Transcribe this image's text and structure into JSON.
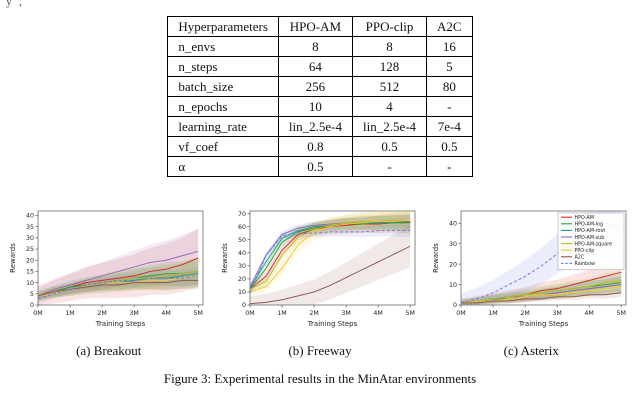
{
  "page": {
    "top_fragment": "y ,",
    "figure_caption": "Figure 3: Experimental results in the MinAtar environments"
  },
  "table": {
    "headers": [
      "Hyperparameters",
      "HPO-AM",
      "PPO-clip",
      "A2C"
    ],
    "rows": [
      [
        "n_envs",
        "8",
        "8",
        "16"
      ],
      [
        "n_steps",
        "64",
        "128",
        "5"
      ],
      [
        "batch_size",
        "256",
        "512",
        "80"
      ],
      [
        "n_epochs",
        "10",
        "4",
        "-"
      ],
      [
        "learning_rate",
        "lin_2.5e-4",
        "lin_2.5e-4",
        "7e-4"
      ],
      [
        "vf_coef",
        "0.8",
        "0.5",
        "0.5"
      ],
      [
        "α",
        "0.5",
        "-",
        "-"
      ]
    ]
  },
  "captions": [
    "(a) Breakout",
    "(b) Freeway",
    "(c) Asterix"
  ],
  "chart_data": [
    {
      "type": "line",
      "title": "Breakout",
      "xlabel": "Training Steps",
      "ylabel": "Rewards",
      "x": [
        0,
        0.5,
        1,
        1.5,
        2,
        2.5,
        3,
        3.5,
        4,
        4.5,
        5
      ],
      "xtick_labels": [
        "0M",
        "1M",
        "2M",
        "3M",
        "4M",
        "5M"
      ],
      "xlim": [
        0,
        5.15
      ],
      "ylim": [
        0,
        42
      ],
      "yticks": [
        0,
        5,
        10,
        15,
        20,
        25,
        30,
        35,
        40
      ],
      "legend": false,
      "series": [
        {
          "name": "HPO-AM",
          "color": "#d62728",
          "dash": false,
          "band": 13,
          "values": [
            4,
            6,
            8,
            10,
            11,
            12,
            13,
            15,
            16,
            18,
            21
          ]
        },
        {
          "name": "HPO-AM-log",
          "color": "#2ca02c",
          "dash": false,
          "band": 6,
          "values": [
            4,
            6,
            8,
            9,
            10,
            11,
            12,
            13,
            14,
            14,
            15
          ]
        },
        {
          "name": "HPO-AM-root",
          "color": "#1b9e77",
          "dash": false,
          "band": 6,
          "values": [
            4,
            6,
            7,
            8,
            9,
            10,
            11,
            12,
            12,
            13,
            14
          ]
        },
        {
          "name": "HPO-AM-sub",
          "color": "#9467bd",
          "dash": false,
          "band": 10,
          "values": [
            4,
            7,
            9,
            11,
            13,
            15,
            17,
            19,
            20,
            22,
            24
          ]
        },
        {
          "name": "HPO-AM-square",
          "color": "#bcbd22",
          "dash": false,
          "band": 6,
          "values": [
            4,
            6,
            7,
            9,
            10,
            11,
            12,
            12,
            13,
            14,
            15
          ]
        },
        {
          "name": "PPO-clip",
          "color": "#f2c832",
          "dash": false,
          "band": 5,
          "values": [
            4,
            5,
            7,
            8,
            9,
            10,
            10,
            11,
            11,
            12,
            13
          ]
        },
        {
          "name": "A2C",
          "color": "#8c564b",
          "dash": false,
          "band": 4,
          "values": [
            4,
            6,
            7,
            8,
            9,
            9,
            10,
            10,
            10,
            11,
            11
          ]
        },
        {
          "name": "Rainbow",
          "color": "#6677ee",
          "dash": true,
          "band": 4,
          "values": [
            3,
            5,
            7,
            9,
            10,
            11,
            11,
            12,
            12,
            12,
            13
          ]
        }
      ]
    },
    {
      "type": "line",
      "title": "Freeway",
      "xlabel": "Training Steps",
      "ylabel": "Rewards",
      "x": [
        0,
        0.5,
        1,
        1.5,
        2,
        2.5,
        3,
        3.5,
        4,
        4.5,
        5
      ],
      "xtick_labels": [
        "0M",
        "1M",
        "2M",
        "3M",
        "4M",
        "5M"
      ],
      "xlim": [
        0,
        5.15
      ],
      "ylim": [
        0,
        72
      ],
      "yticks": [
        0,
        10,
        20,
        30,
        40,
        50,
        60,
        70
      ],
      "legend": false,
      "series": [
        {
          "name": "HPO-AM",
          "color": "#d62728",
          "dash": false,
          "band": 8,
          "values": [
            12,
            22,
            42,
            54,
            58,
            60,
            61,
            62,
            62,
            63,
            63
          ]
        },
        {
          "name": "HPO-AM-log",
          "color": "#2ca02c",
          "dash": false,
          "band": 6,
          "values": [
            12,
            28,
            48,
            56,
            59,
            61,
            62,
            62,
            63,
            63,
            63
          ]
        },
        {
          "name": "HPO-AM-root",
          "color": "#1b9e77",
          "dash": false,
          "band": 6,
          "values": [
            13,
            33,
            51,
            57,
            60,
            61,
            62,
            63,
            63,
            63,
            64
          ]
        },
        {
          "name": "HPO-AM-sub",
          "color": "#9467bd",
          "dash": false,
          "band": 5,
          "values": [
            14,
            38,
            54,
            59,
            61,
            62,
            63,
            63,
            64,
            64,
            64
          ]
        },
        {
          "name": "HPO-AM-square",
          "color": "#bcbd22",
          "dash": false,
          "band": 8,
          "values": [
            12,
            18,
            38,
            52,
            58,
            61,
            63,
            64,
            64,
            65,
            65
          ]
        },
        {
          "name": "PPO-clip",
          "color": "#f2c832",
          "dash": false,
          "band": 10,
          "values": [
            10,
            14,
            28,
            46,
            56,
            60,
            62,
            63,
            64,
            64,
            65
          ]
        },
        {
          "name": "A2C",
          "color": "#8c564b",
          "dash": false,
          "band": 16,
          "values": [
            1,
            2,
            4,
            7,
            10,
            15,
            21,
            27,
            33,
            39,
            45
          ]
        },
        {
          "name": "Rainbow",
          "color": "#6677ee",
          "dash": true,
          "band": 5,
          "values": [
            9,
            38,
            53,
            55,
            55,
            56,
            56,
            56,
            57,
            57,
            57
          ]
        }
      ]
    },
    {
      "type": "line",
      "title": "Asterix",
      "xlabel": "Training Steps",
      "ylabel": "Rewards",
      "x": [
        0,
        0.5,
        1,
        1.5,
        2,
        2.5,
        3,
        3.5,
        4,
        4.5,
        5
      ],
      "xtick_labels": [
        "0M",
        "1M",
        "2M",
        "3M",
        "4M",
        "5M"
      ],
      "xlim": [
        0,
        5.15
      ],
      "ylim": [
        0,
        46
      ],
      "yticks": [
        0,
        10,
        20,
        30,
        40
      ],
      "legend": true,
      "legend_position": "upper right",
      "series": [
        {
          "name": "HPO-AM",
          "color": "#d62728",
          "dash": false,
          "band": 6,
          "values": [
            1,
            2,
            3,
            4,
            5,
            7,
            8,
            10,
            12,
            14,
            16
          ]
        },
        {
          "name": "HPO-AM-log",
          "color": "#2ca02c",
          "dash": false,
          "band": 4,
          "values": [
            1,
            2,
            3,
            4,
            5,
            6,
            7,
            8,
            9,
            10,
            11
          ]
        },
        {
          "name": "HPO-AM-root",
          "color": "#1b9e77",
          "dash": false,
          "band": 4,
          "values": [
            1,
            2,
            3,
            3,
            4,
            5,
            6,
            7,
            8,
            9,
            10
          ]
        },
        {
          "name": "HPO-AM-sub",
          "color": "#9467bd",
          "dash": false,
          "band": 4,
          "values": [
            1,
            2,
            3,
            4,
            4,
            5,
            6,
            7,
            8,
            9,
            10
          ]
        },
        {
          "name": "HPO-AM-square",
          "color": "#bcbd22",
          "dash": false,
          "band": 5,
          "values": [
            1,
            2,
            3,
            4,
            5,
            6,
            7,
            8,
            9,
            11,
            12
          ]
        },
        {
          "name": "PPO-clip",
          "color": "#f2c832",
          "dash": false,
          "band": 3,
          "values": [
            1,
            2,
            2,
            3,
            4,
            5,
            5,
            6,
            7,
            8,
            9
          ]
        },
        {
          "name": "A2C",
          "color": "#8c564b",
          "dash": false,
          "band": 2,
          "values": [
            1,
            1,
            2,
            2,
            3,
            3,
            4,
            4,
            5,
            5,
            6
          ]
        },
        {
          "name": "Rainbow",
          "color": "#6677ee",
          "dash": true,
          "band": 13,
          "values": [
            1,
            3,
            6,
            10,
            14,
            19,
            25,
            30,
            35,
            40,
            38
          ]
        }
      ]
    }
  ]
}
